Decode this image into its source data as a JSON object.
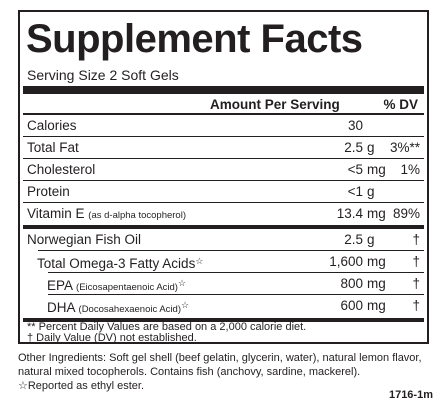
{
  "title": "Supplement Facts",
  "serving_size": "Serving Size 2 Soft Gels",
  "header": {
    "amount": "Amount Per Serving",
    "dv": "% DV"
  },
  "rows": [
    {
      "name": "Calories",
      "sub": "",
      "star": "",
      "amount": "30",
      "unit": "",
      "dv": ""
    },
    {
      "name": "Total Fat",
      "sub": "",
      "star": "",
      "amount": "2.5",
      "unit": "g",
      "dv": "3%**"
    },
    {
      "name": "Cholesterol",
      "sub": "",
      "star": "",
      "amount": "<5",
      "unit": "mg",
      "dv": "1%"
    },
    {
      "name": "Protein",
      "sub": "",
      "star": "",
      "amount": "<1",
      "unit": "g",
      "dv": ""
    },
    {
      "name": "Vitamin E",
      "sub": "(as d-alpha tocopherol)",
      "star": "",
      "amount": "13.4",
      "unit": "mg",
      "dv": "89%"
    },
    {
      "name": "Norwegian Fish Oil",
      "sub": "",
      "star": "",
      "amount": "2.5",
      "unit": "g",
      "dv": "†"
    },
    {
      "name": "Total Omega-3 Fatty Acids",
      "sub": "",
      "star": "☆",
      "amount": "1,600",
      "unit": "mg",
      "dv": "†"
    },
    {
      "name": "EPA",
      "sub": "(Eicosapentaenoic Acid)",
      "star": "☆",
      "amount": "800",
      "unit": "mg",
      "dv": "†"
    },
    {
      "name": "DHA",
      "sub": "(Docosahexaenoic Acid)",
      "star": "☆",
      "amount": "600",
      "unit": "mg",
      "dv": "†"
    }
  ],
  "footnotes": [
    "** Percent Daily Values are based on a 2,000 calorie diet.",
    "† Daily Value (DV) not established."
  ],
  "other_ingredients": "Other Ingredients: Soft gel shell (beef gelatin, glycerin, water), natural lemon flavor, natural mixed tocopherols. Contains fish (anchovy, sardine, mackerel).",
  "reported_note": "☆Reported as ethyl ester.",
  "product_code": "1716-1m"
}
